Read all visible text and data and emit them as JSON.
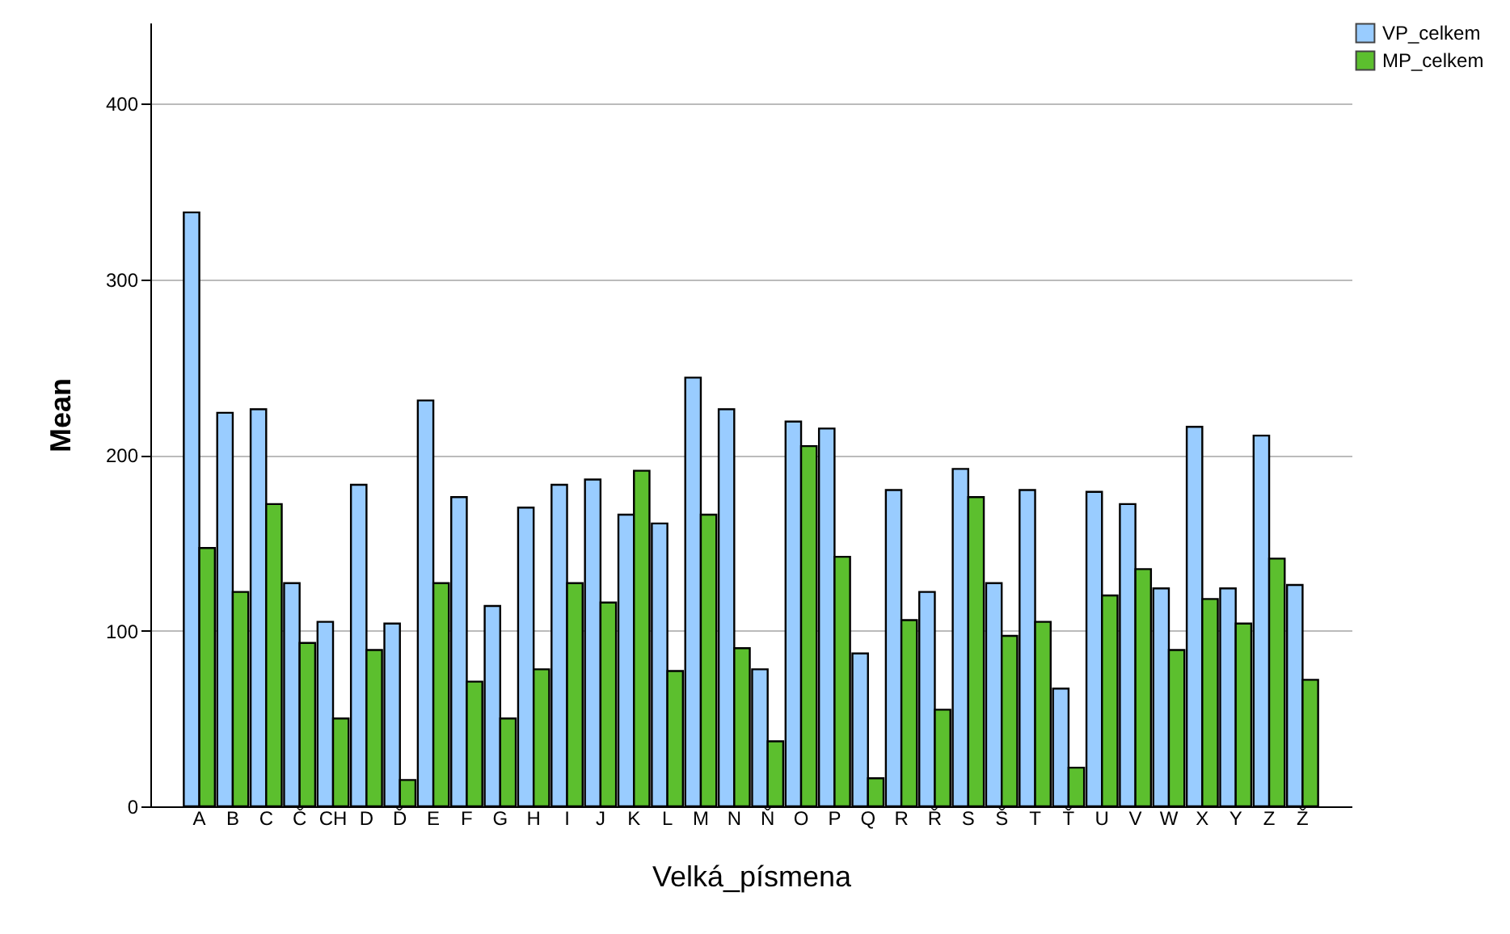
{
  "chart_data": {
    "type": "bar",
    "xlabel": "Velká_písmena",
    "ylabel": "Mean",
    "categories": [
      "A",
      "B",
      "C",
      "Č",
      "CH",
      "D",
      "Ď",
      "E",
      "F",
      "G",
      "H",
      "I",
      "J",
      "K",
      "L",
      "M",
      "N",
      "Ň",
      "O",
      "P",
      "Q",
      "R",
      "Ř",
      "S",
      "Š",
      "T",
      "Ť",
      "U",
      "V",
      "W",
      "X",
      "Y",
      "Z",
      "Ž"
    ],
    "series": [
      {
        "name": "VP_celkem",
        "color": "#99ccff",
        "values": [
          338,
          224,
          226,
          127,
          105,
          183,
          104,
          231,
          176,
          114,
          170,
          183,
          186,
          166,
          161,
          244,
          226,
          78,
          219,
          215,
          87,
          180,
          122,
          192,
          127,
          180,
          67,
          179,
          172,
          124,
          216,
          124,
          211,
          126
        ]
      },
      {
        "name": "MP_celkem",
        "color": "#5cbf2e",
        "values": [
          147,
          122,
          172,
          93,
          50,
          89,
          15,
          127,
          71,
          50,
          78,
          127,
          116,
          191,
          77,
          166,
          90,
          37,
          205,
          142,
          16,
          106,
          55,
          176,
          97,
          105,
          22,
          120,
          135,
          89,
          118,
          104,
          141,
          72
        ]
      }
    ],
    "ylim": [
      0,
      446
    ],
    "yticks": [
      0,
      100,
      200,
      300,
      400
    ],
    "grid": "y",
    "legend": "top right"
  }
}
